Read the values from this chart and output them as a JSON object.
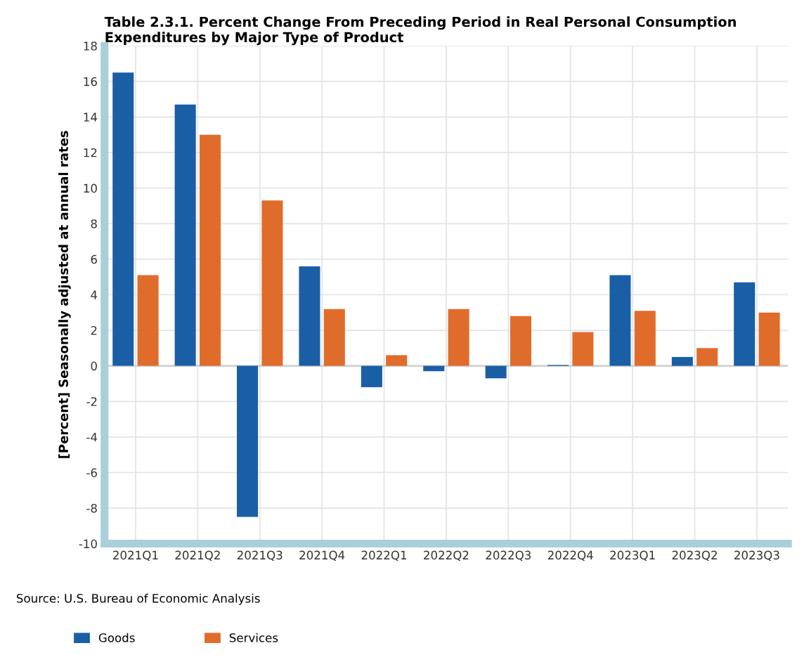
{
  "chart_data": {
    "type": "bar",
    "title": "Table 2.3.1. Percent Change From Preceding Period in Real Personal Consumption Expenditures by Major Type of Product",
    "ylabel": "[Percent] Seasonally adjusted at annual rates",
    "categories": [
      "2021Q1",
      "2021Q2",
      "2021Q3",
      "2021Q4",
      "2022Q1",
      "2022Q2",
      "2022Q3",
      "2022Q4",
      "2023Q1",
      "2023Q2",
      "2023Q3"
    ],
    "series": [
      {
        "name": "Goods",
        "color": "#1a5ea6",
        "values": [
          16.5,
          14.7,
          -8.5,
          5.6,
          -1.2,
          -0.3,
          -0.7,
          0.05,
          5.1,
          0.5,
          4.7
        ]
      },
      {
        "name": "Services",
        "color": "#e06c2c",
        "values": [
          5.1,
          13.0,
          9.3,
          3.2,
          0.6,
          3.2,
          2.8,
          1.9,
          3.1,
          1.0,
          3.0
        ]
      }
    ],
    "ylim": [
      -10,
      18
    ],
    "yticks": [
      -10,
      -8,
      -6,
      -4,
      -2,
      0,
      2,
      4,
      6,
      8,
      10,
      12,
      14,
      16,
      18
    ],
    "grid": true,
    "legend": "bottom",
    "annotations": [
      "Source: U.S. Bureau of Economic Analysis"
    ]
  }
}
